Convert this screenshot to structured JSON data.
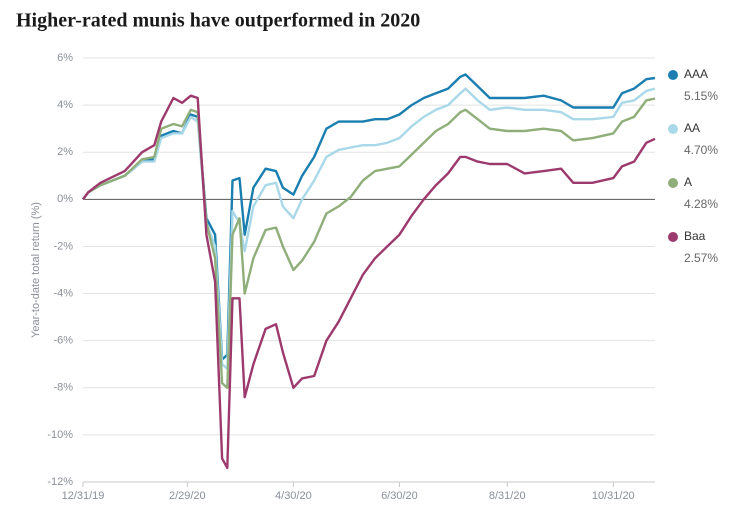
{
  "chart_data": {
    "type": "line",
    "title": "Higher-rated munis have outperformed in 2020",
    "y_label": "Year-to-date total return (%)",
    "x": [
      "12/31/19",
      "1/3/20",
      "1/10/20",
      "1/24/20",
      "2/3/20",
      "2/10/20",
      "2/14/20",
      "2/21/20",
      "2/26/20",
      "3/2/20",
      "3/6/20",
      "3/11/20",
      "3/16/20",
      "3/20/20",
      "3/23/20",
      "3/26/20",
      "3/30/20",
      "4/2/20",
      "4/7/20",
      "4/14/20",
      "4/20/20",
      "4/24/20",
      "4/30/20",
      "5/5/20",
      "5/12/20",
      "5/19/20",
      "5/26/20",
      "6/2/20",
      "6/9/20",
      "6/16/20",
      "6/23/20",
      "6/30/20",
      "7/7/20",
      "7/14/20",
      "7/21/20",
      "7/28/20",
      "8/4/20",
      "8/7/20",
      "8/14/20",
      "8/21/20",
      "8/31/20",
      "9/10/20",
      "9/21/20",
      "10/1/20",
      "10/8/20",
      "10/19/20",
      "10/31/20",
      "11/5/20",
      "11/12/20",
      "11/19/20",
      "11/24/20"
    ],
    "series": [
      {
        "name": "AAA",
        "color": "#1a7fb0",
        "values": [
          0,
          0.3,
          0.6,
          1.0,
          1.6,
          1.7,
          2.7,
          2.9,
          2.8,
          3.6,
          3.5,
          -0.8,
          -1.5,
          -6.8,
          -6.6,
          0.8,
          0.9,
          -1.5,
          0.5,
          1.3,
          1.2,
          0.5,
          0.2,
          1.0,
          1.8,
          3.0,
          3.3,
          3.3,
          3.3,
          3.4,
          3.4,
          3.6,
          4.0,
          4.3,
          4.5,
          4.7,
          5.2,
          5.3,
          4.8,
          4.3,
          4.3,
          4.3,
          4.4,
          4.2,
          3.9,
          3.9,
          3.9,
          4.5,
          4.7,
          5.1,
          5.15
        ],
        "value_labels": [
          null,
          null,
          null,
          null,
          null,
          null,
          null,
          null,
          null,
          null,
          null,
          null,
          null,
          null,
          null,
          null,
          null,
          null,
          null,
          null,
          null,
          null,
          null,
          null,
          null,
          null,
          null,
          null,
          null,
          null,
          null,
          null,
          null,
          null,
          null,
          null,
          null,
          null,
          null,
          null,
          null,
          null,
          null,
          null,
          null,
          null,
          null,
          null,
          null,
          null,
          "5.15%"
        ]
      },
      {
        "name": "AA",
        "color": "#a9d8e8",
        "values": [
          0,
          0.3,
          0.6,
          1.0,
          1.6,
          1.6,
          2.6,
          2.8,
          2.8,
          3.5,
          3.3,
          -1.0,
          -2.0,
          -7.0,
          -7.2,
          -0.5,
          -1.0,
          -2.2,
          -0.3,
          0.6,
          0.7,
          -0.3,
          -0.8,
          0,
          0.8,
          1.8,
          2.1,
          2.2,
          2.3,
          2.3,
          2.4,
          2.6,
          3.1,
          3.5,
          3.8,
          4.0,
          4.5,
          4.7,
          4.2,
          3.8,
          3.9,
          3.8,
          3.8,
          3.7,
          3.4,
          3.4,
          3.5,
          4.1,
          4.2,
          4.6,
          4.7
        ],
        "value_labels": [
          null,
          null,
          null,
          null,
          null,
          null,
          null,
          null,
          null,
          null,
          null,
          null,
          null,
          null,
          null,
          null,
          null,
          null,
          null,
          null,
          null,
          null,
          null,
          null,
          null,
          null,
          null,
          null,
          null,
          null,
          null,
          null,
          null,
          null,
          null,
          null,
          null,
          null,
          null,
          null,
          null,
          null,
          null,
          null,
          null,
          null,
          null,
          null,
          null,
          null,
          "4.70%"
        ]
      },
      {
        "name": "A",
        "color": "#8fae7a",
        "values": [
          0,
          0.3,
          0.6,
          1.0,
          1.7,
          1.8,
          3.0,
          3.2,
          3.1,
          3.8,
          3.7,
          -1.0,
          -2.5,
          -7.8,
          -8.0,
          -1.5,
          -0.8,
          -4.0,
          -2.5,
          -1.3,
          -1.2,
          -2.0,
          -3.0,
          -2.6,
          -1.8,
          -0.6,
          -0.3,
          0.1,
          0.8,
          1.2,
          1.3,
          1.4,
          1.9,
          2.4,
          2.9,
          3.2,
          3.7,
          3.8,
          3.4,
          3.0,
          2.9,
          2.9,
          3.0,
          2.9,
          2.5,
          2.6,
          2.8,
          3.3,
          3.5,
          4.2,
          4.28
        ],
        "value_labels": [
          null,
          null,
          null,
          null,
          null,
          null,
          null,
          null,
          null,
          null,
          null,
          null,
          null,
          null,
          null,
          null,
          null,
          null,
          null,
          null,
          null,
          null,
          null,
          null,
          null,
          null,
          null,
          null,
          null,
          null,
          null,
          null,
          null,
          null,
          null,
          null,
          null,
          null,
          null,
          null,
          null,
          null,
          null,
          null,
          null,
          null,
          null,
          null,
          null,
          null,
          "4.28%"
        ]
      },
      {
        "name": "Baa",
        "color": "#9c3a6e",
        "values": [
          0,
          0.3,
          0.7,
          1.2,
          2.0,
          2.3,
          3.3,
          4.3,
          4.1,
          4.4,
          4.3,
          -1.5,
          -3.5,
          -11.0,
          -11.4,
          -4.2,
          -4.2,
          -8.4,
          -7.0,
          -5.5,
          -5.3,
          -6.5,
          -8.0,
          -7.6,
          -7.5,
          -6.0,
          -5.2,
          -4.2,
          -3.2,
          -2.5,
          -2.0,
          -1.5,
          -0.7,
          0,
          0.6,
          1.1,
          1.8,
          1.8,
          1.6,
          1.5,
          1.5,
          1.1,
          1.2,
          1.3,
          0.7,
          0.7,
          0.9,
          1.4,
          1.6,
          2.4,
          2.57
        ],
        "value_labels": [
          null,
          null,
          null,
          null,
          null,
          null,
          null,
          null,
          null,
          null,
          null,
          null,
          null,
          null,
          null,
          null,
          null,
          null,
          null,
          null,
          null,
          null,
          null,
          null,
          null,
          null,
          null,
          null,
          null,
          null,
          null,
          null,
          null,
          null,
          null,
          null,
          null,
          null,
          null,
          null,
          null,
          null,
          null,
          null,
          null,
          null,
          null,
          null,
          null,
          null,
          "2.57%"
        ]
      }
    ],
    "xlim": [
      "12/31/19",
      "11/24/20"
    ],
    "xticks": [
      "12/31/19",
      "2/29/20",
      "4/30/20",
      "6/30/20",
      "8/31/20",
      "10/31/20"
    ],
    "ylim": [
      -12,
      6
    ],
    "yticks": [
      {
        "value": 6,
        "label": "6%"
      },
      {
        "value": 4,
        "label": "4%"
      },
      {
        "value": 2,
        "label": "2%"
      },
      {
        "value": 0,
        "label": "0%"
      },
      {
        "value": -2,
        "label": "-2%"
      },
      {
        "value": -4,
        "label": "-4%"
      },
      {
        "value": -6,
        "label": "-6%"
      },
      {
        "value": -8,
        "label": "-8%"
      },
      {
        "value": -10,
        "label": "-10%"
      },
      {
        "value": -12,
        "label": "-12%"
      }
    ],
    "grid": true,
    "legend": "right"
  }
}
